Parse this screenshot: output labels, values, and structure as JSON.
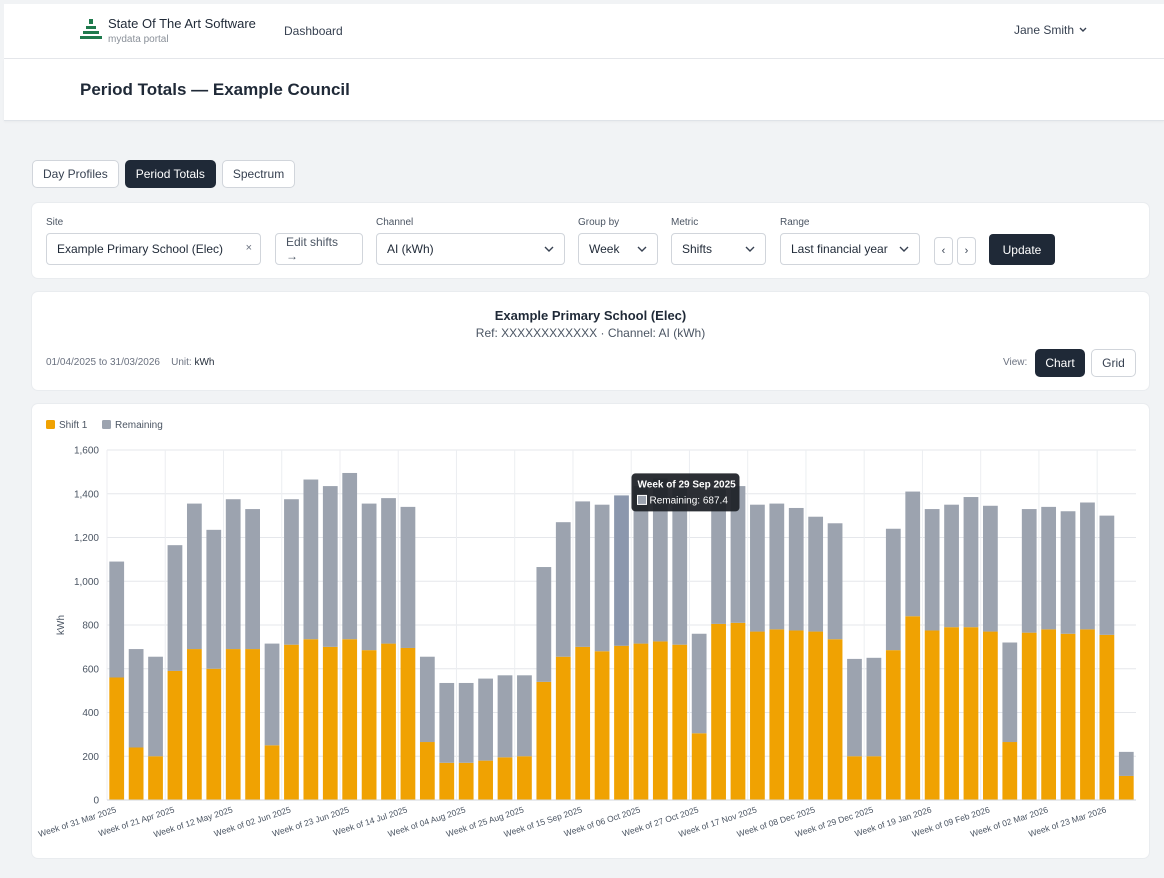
{
  "header": {
    "brand_title": "State Of The Art Software",
    "brand_subtitle": "mydata portal",
    "nav_dashboard": "Dashboard",
    "user_name": "Jane Smith",
    "logo_icon": "stacked-bars-logo-icon",
    "logo_color": "#1f7a4d"
  },
  "page": {
    "title": "Period Totals — Example Council"
  },
  "tabs": [
    {
      "label": "Day Profiles",
      "active": false
    },
    {
      "label": "Period Totals",
      "active": true
    },
    {
      "label": "Spectrum",
      "active": false
    }
  ],
  "filters": {
    "site_label": "Site",
    "site_value": "Example Primary School (Elec)",
    "edit_shifts": "Edit shifts →",
    "channel_label": "Channel",
    "channel_value": "AI (kWh)",
    "group_label": "Group by",
    "group_value": "Week",
    "metric_label": "Metric",
    "metric_value": "Shifts",
    "range_label": "Range",
    "range_value": "Last financial year",
    "prev": "‹",
    "next": "›",
    "update": "Update"
  },
  "info": {
    "title": "Example Primary School (Elec)",
    "subtitle": "Ref: XXXXXXXXXXXX · Channel: AI (kWh)",
    "date_range": "01/04/2025 to 31/03/2026",
    "unit_label": "Unit:",
    "unit_value": "kWh",
    "view_label": "View:",
    "view_chart": "Chart",
    "view_grid": "Grid"
  },
  "chart_data": {
    "type": "bar",
    "stacked": true,
    "ylabel": "kWh",
    "ylim": [
      0,
      1600
    ],
    "yticks": [
      0,
      200,
      400,
      600,
      800,
      1000,
      1200,
      1400,
      1600
    ],
    "ytick_labels": [
      "0",
      "200",
      "400",
      "600",
      "800",
      "1,000",
      "1,200",
      "1,400",
      "1,600"
    ],
    "grid": true,
    "legend_position": "top-left",
    "categories": [
      "Week of 31 Mar 2025",
      "Week of 07 Apr 2025",
      "Week of 14 Apr 2025",
      "Week of 21 Apr 2025",
      "Week of 28 Apr 2025",
      "Week of 05 May 2025",
      "Week of 12 May 2025",
      "Week of 19 May 2025",
      "Week of 26 May 2025",
      "Week of 02 Jun 2025",
      "Week of 09 Jun 2025",
      "Week of 16 Jun 2025",
      "Week of 23 Jun 2025",
      "Week of 30 Jun 2025",
      "Week of 07 Jul 2025",
      "Week of 14 Jul 2025",
      "Week of 21 Jul 2025",
      "Week of 28 Jul 2025",
      "Week of 04 Aug 2025",
      "Week of 11 Aug 2025",
      "Week of 18 Aug 2025",
      "Week of 25 Aug 2025",
      "Week of 01 Sep 2025",
      "Week of 08 Sep 2025",
      "Week of 15 Sep 2025",
      "Week of 22 Sep 2025",
      "Week of 29 Sep 2025",
      "Week of 06 Oct 2025",
      "Week of 13 Oct 2025",
      "Week of 20 Oct 2025",
      "Week of 27 Oct 2025",
      "Week of 03 Nov 2025",
      "Week of 10 Nov 2025",
      "Week of 17 Nov 2025",
      "Week of 24 Nov 2025",
      "Week of 01 Dec 2025",
      "Week of 08 Dec 2025",
      "Week of 15 Dec 2025",
      "Week of 22 Dec 2025",
      "Week of 29 Dec 2025",
      "Week of 05 Jan 2026",
      "Week of 12 Jan 2026",
      "Week of 19 Jan 2026",
      "Week of 26 Jan 2026",
      "Week of 02 Feb 2026",
      "Week of 09 Feb 2026",
      "Week of 16 Feb 2026",
      "Week of 23 Feb 2026",
      "Week of 02 Mar 2026",
      "Week of 09 Mar 2026",
      "Week of 16 Mar 2026",
      "Week of 23 Mar 2026",
      "Week of 30 Mar 2026"
    ],
    "xtick_labels": [
      "Week of 31 Mar 2025",
      "Week of 21 Apr 2025",
      "Week of 12 May 2025",
      "Week of 02 Jun 2025",
      "Week of 23 Jun 2025",
      "Week of 14 Jul 2025",
      "Week of 04 Aug 2025",
      "Week of 25 Aug 2025",
      "Week of 15 Sep 2025",
      "Week of 06 Oct 2025",
      "Week of 27 Oct 2025",
      "Week of 17 Nov 2025",
      "Week of 08 Dec 2025",
      "Week of 29 Dec 2025",
      "Week of 19 Jan 2026",
      "Week of 09 Feb 2026",
      "Week of 02 Mar 2026",
      "Week of 23 Mar 2026"
    ],
    "series": [
      {
        "name": "Shift 1",
        "color": "#f0a202",
        "values": [
          560,
          240,
          200,
          590,
          690,
          600,
          690,
          690,
          250,
          710,
          735,
          700,
          735,
          685,
          715,
          695,
          265,
          170,
          170,
          180,
          195,
          200,
          540,
          655,
          700,
          680,
          705,
          715,
          725,
          710,
          305,
          805,
          810,
          770,
          780,
          775,
          770,
          735,
          200,
          200,
          685,
          840,
          775,
          790,
          790,
          770,
          265,
          765,
          780,
          760,
          780,
          755,
          110
        ]
      },
      {
        "name": "Remaining",
        "color": "#9ca3af",
        "values": [
          530,
          450,
          455,
          575,
          665,
          635,
          685,
          640,
          465,
          665,
          730,
          735,
          760,
          670,
          665,
          645,
          390,
          365,
          365,
          375,
          375,
          370,
          525,
          615,
          665,
          670,
          687.4,
          720,
          745,
          725,
          455,
          615,
          625,
          580,
          575,
          560,
          525,
          530,
          445,
          450,
          555,
          570,
          555,
          560,
          595,
          575,
          455,
          565,
          560,
          560,
          580,
          545,
          110
        ]
      }
    ],
    "tooltip": {
      "title": "Week of 29 Sep 2025",
      "text": "Remaining: 687.4"
    }
  }
}
